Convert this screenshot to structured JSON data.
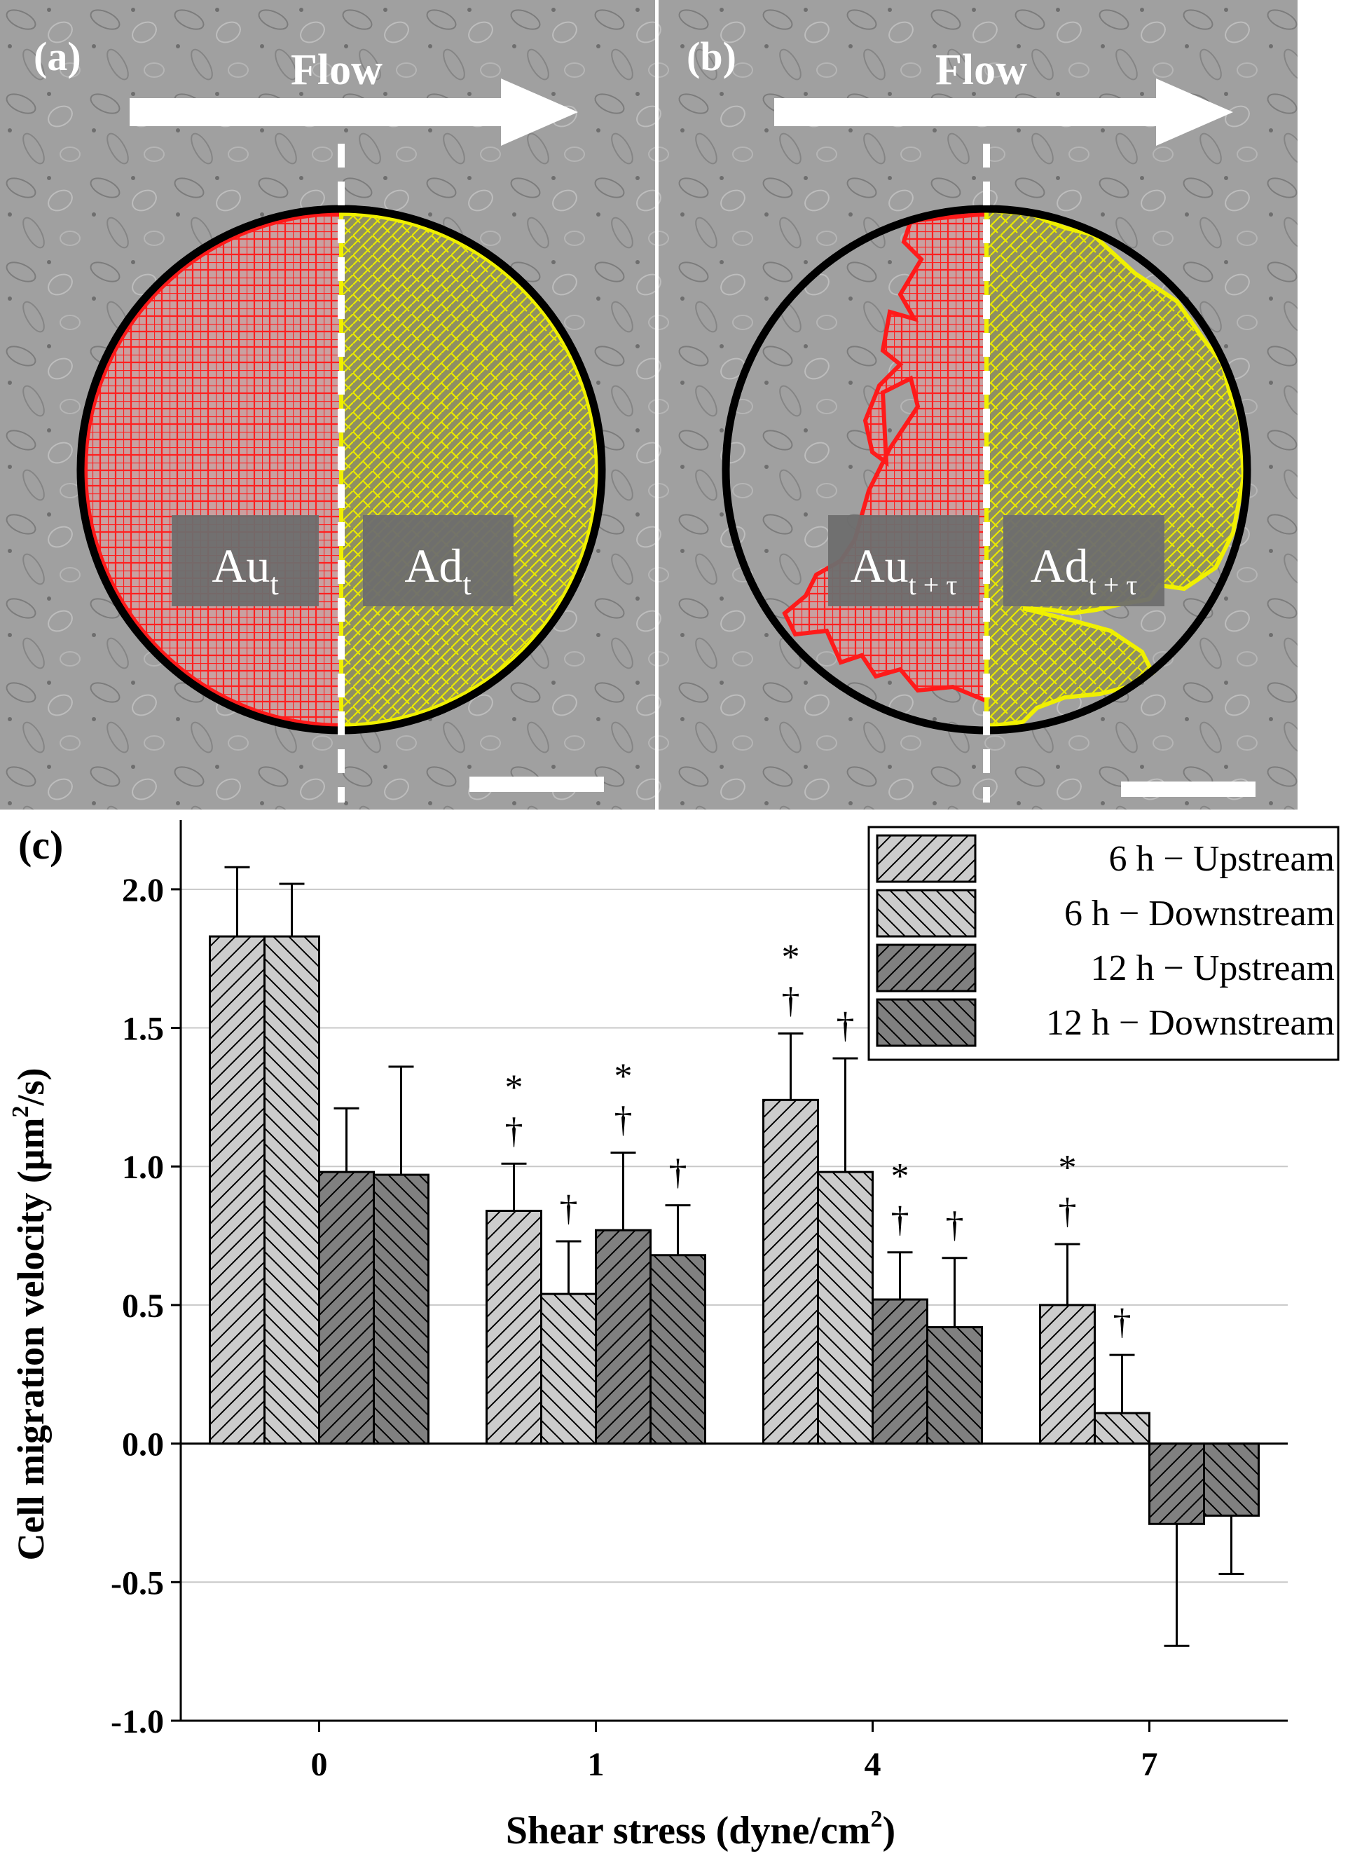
{
  "panels": {
    "a": {
      "label": "(a)",
      "flow_label": "Flow",
      "region_up": {
        "base": "Au",
        "sub": "t"
      },
      "region_down": {
        "base": "Ad",
        "sub": "t"
      }
    },
    "b": {
      "label": "(b)",
      "flow_label": "Flow",
      "region_up": {
        "base": "Au",
        "sub": "t + τ"
      },
      "region_down": {
        "base": "Ad",
        "sub": "t + τ"
      }
    }
  },
  "colors": {
    "upstream_region": "#ff1a1a",
    "downstream_region": "#e8e800",
    "micrograph_bg": "#9c9c9c",
    "bar_6h": "#cccccc",
    "bar_12h": "#7f7f7f",
    "axis": "#000000",
    "grid": "#c8c8c8"
  },
  "chart_data": {
    "type": "bar",
    "panel_label": "(c)",
    "title": "",
    "xlabel": "Shear stress (dyne/cm",
    "xlabel_sup": "2",
    "xlabel_tail": ")",
    "ylabel": "Cell migration velocity (μm",
    "ylabel_sup": "2",
    "ylabel_tail": "/s)",
    "ylim": [
      -1.0,
      2.25
    ],
    "yticks": [
      "-1.0",
      "-0.5",
      "0.0",
      "0.5",
      "1.0",
      "1.5",
      "2.0"
    ],
    "ytick_values": [
      -1.0,
      -0.5,
      0.0,
      0.5,
      1.0,
      1.5,
      2.0
    ],
    "grid": true,
    "legend_position": "top-right",
    "categories": [
      "0",
      "1",
      "4",
      "7"
    ],
    "series": [
      {
        "name": "6 h − Upstream",
        "hatch": "up",
        "shade": "light",
        "values": [
          1.83,
          0.84,
          1.24,
          0.5
        ],
        "errors": [
          0.25,
          0.17,
          0.24,
          0.22
        ],
        "marks": [
          "",
          "*†",
          "*†",
          "*†"
        ]
      },
      {
        "name": "6 h − Downstream",
        "hatch": "down",
        "shade": "light",
        "values": [
          1.83,
          0.54,
          0.98,
          0.11
        ],
        "errors": [
          0.19,
          0.19,
          0.41,
          0.21
        ],
        "marks": [
          "",
          "†",
          "†",
          "†"
        ]
      },
      {
        "name": "12 h − Upstream",
        "hatch": "up",
        "shade": "dark",
        "values": [
          0.98,
          0.77,
          0.52,
          -0.29
        ],
        "errors": [
          0.23,
          0.28,
          0.17,
          0.44
        ],
        "marks": [
          "",
          "*†",
          "*†",
          ""
        ]
      },
      {
        "name": "12 h − Downstream",
        "hatch": "down",
        "shade": "dark",
        "values": [
          0.97,
          0.68,
          0.42,
          -0.26
        ],
        "errors": [
          0.39,
          0.18,
          0.25,
          0.21
        ],
        "marks": [
          "",
          "†",
          "†",
          ""
        ]
      }
    ]
  }
}
